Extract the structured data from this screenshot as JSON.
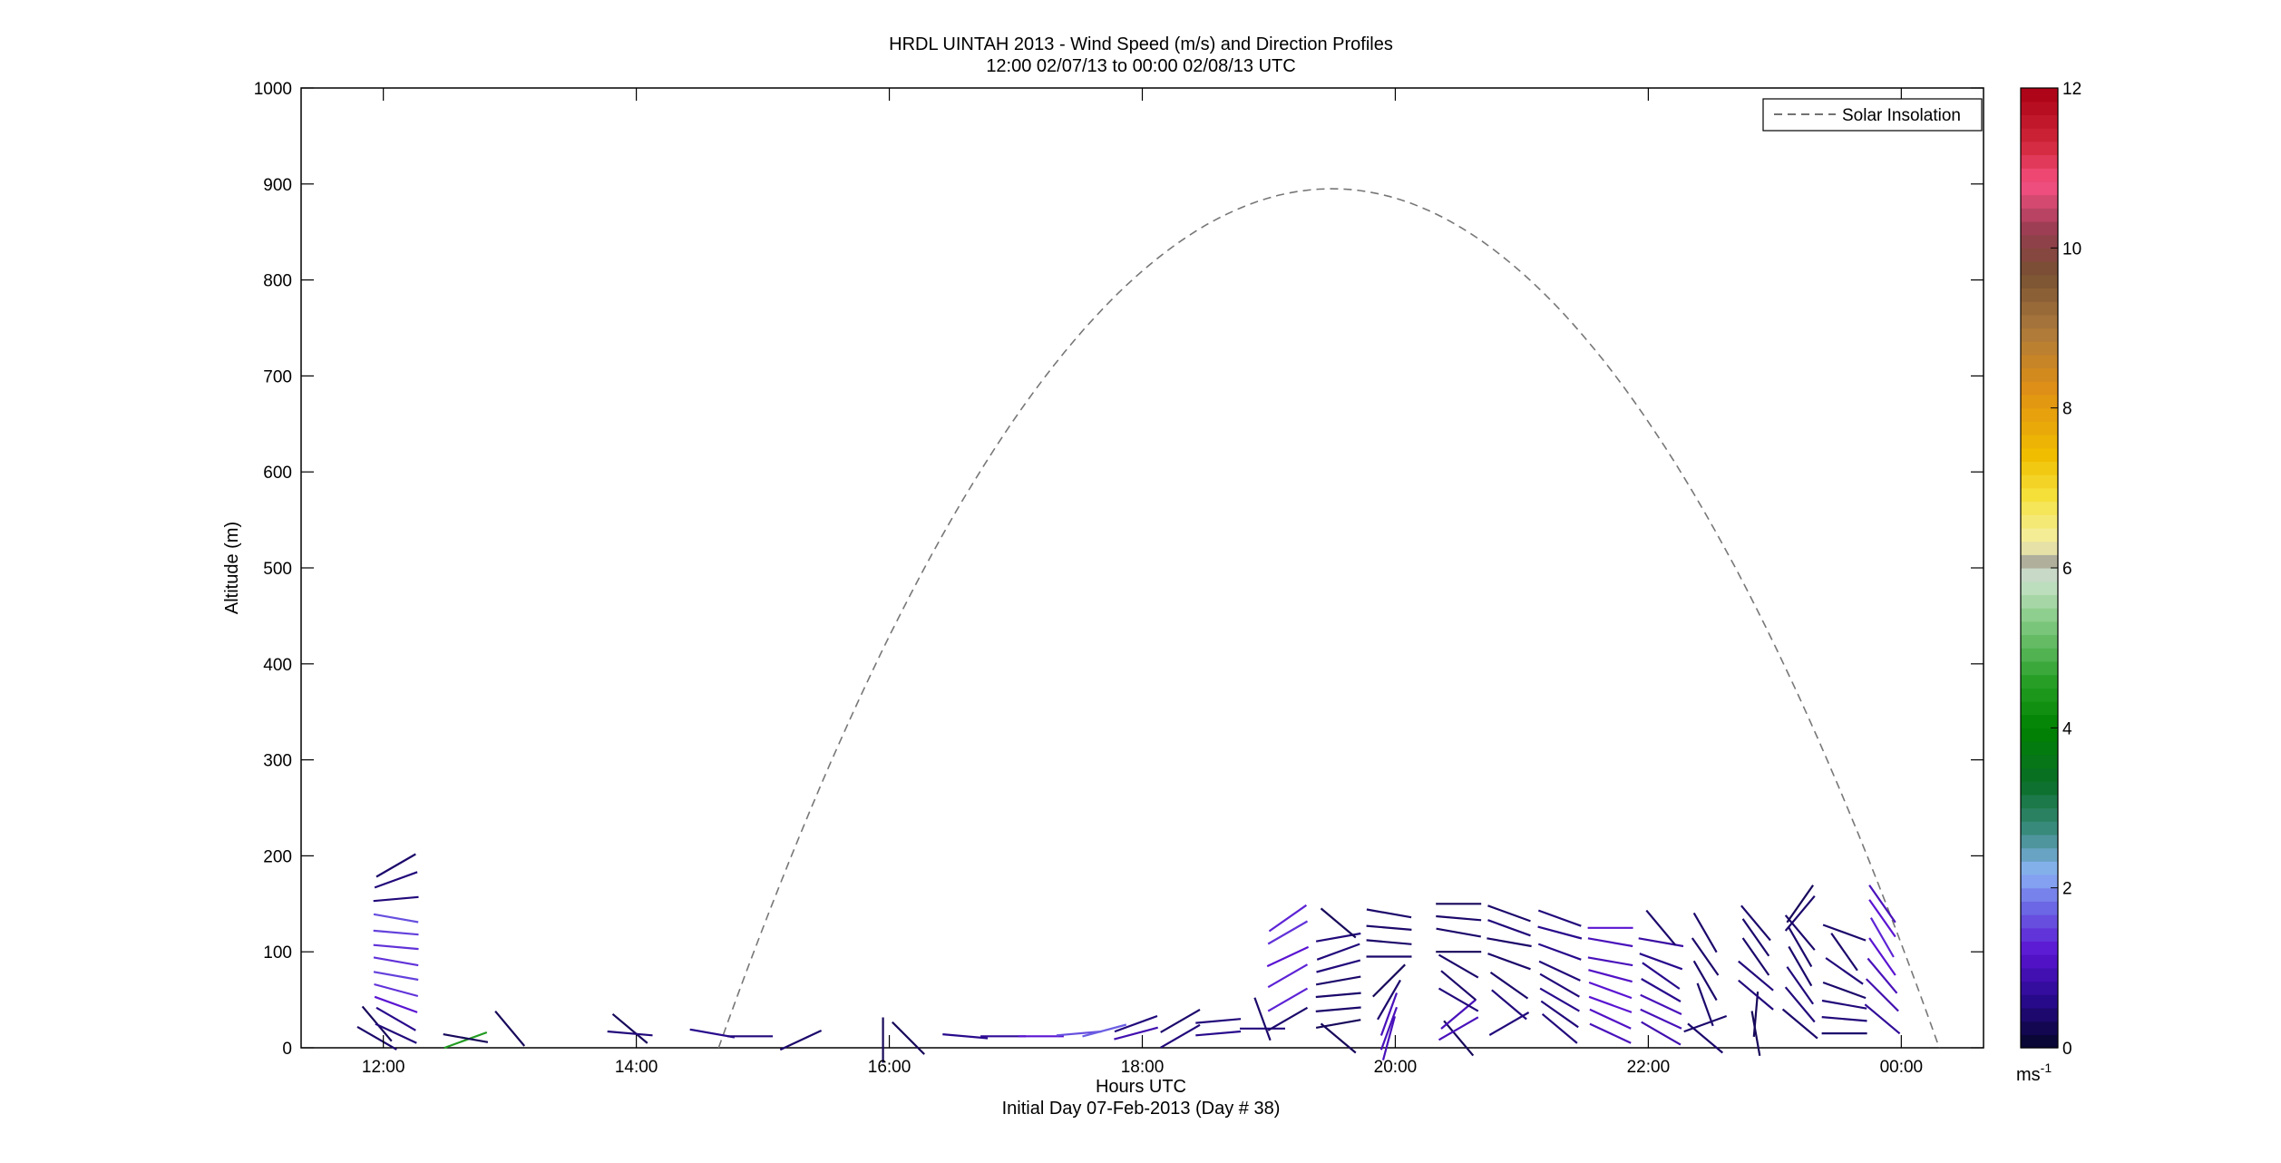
{
  "chart_data": {
    "type": "scatter",
    "title": "HRDL UINTAH 2013 - Wind Speed (m/s) and Direction Profiles",
    "subtitle": "12:00 02/07/13 to 00:00 02/08/13  UTC",
    "xlabel": "Hours UTC",
    "xlabel2": "Initial Day 07-Feb-2013 (Day # 38)",
    "ylabel": "Altitude (m)",
    "x_tick_labels": [
      "12:00",
      "14:00",
      "16:00",
      "18:00",
      "20:00",
      "22:00",
      "00:00"
    ],
    "x_ticks_hours": [
      12,
      14,
      16,
      18,
      20,
      22,
      24
    ],
    "xlim_hours": [
      11.35,
      24.65
    ],
    "ylim": [
      0,
      1000
    ],
    "y_ticks": [
      0,
      100,
      200,
      300,
      400,
      500,
      600,
      700,
      800,
      900,
      1000
    ],
    "grid": false,
    "legend": {
      "position": "top-right",
      "entries": [
        "Solar Insolation"
      ]
    },
    "colorbar": {
      "unit": "ms",
      "unit_exp": "-1",
      "min": 0,
      "max": 12,
      "tick_labels": [
        "0",
        "2",
        "4",
        "6",
        "8",
        "10",
        "12"
      ],
      "ticks": [
        0,
        2,
        4,
        6,
        8,
        10,
        12
      ]
    },
    "solar_insolation": {
      "start_hour": 14.65,
      "peak_hour": 19.5,
      "end_hour": 24.3,
      "peak_altitude": 895
    },
    "wind_profiles": [
      {
        "time": 11.95,
        "levels": [
          {
            "alt": 10,
            "speed": 0.4,
            "dir": 120
          },
          {
            "alt": 25,
            "speed": 0.3,
            "dir": 140
          }
        ]
      },
      {
        "time": 12.1,
        "levels": [
          {
            "alt": 15,
            "speed": 0.5,
            "dir": 115
          },
          {
            "alt": 30,
            "speed": 0.6,
            "dir": 120
          },
          {
            "alt": 45,
            "speed": 1.2,
            "dir": 110
          },
          {
            "alt": 60,
            "speed": 1.4,
            "dir": 105
          },
          {
            "alt": 75,
            "speed": 1.5,
            "dir": 100
          },
          {
            "alt": 90,
            "speed": 1.4,
            "dir": 100
          },
          {
            "alt": 105,
            "speed": 1.4,
            "dir": 95
          },
          {
            "alt": 120,
            "speed": 1.5,
            "dir": 95
          },
          {
            "alt": 135,
            "speed": 1.6,
            "dir": 100
          },
          {
            "alt": 155,
            "speed": 0.5,
            "dir": 85
          },
          {
            "alt": 175,
            "speed": 0.5,
            "dir": 70
          },
          {
            "alt": 190,
            "speed": 0.4,
            "dir": 60
          }
        ]
      },
      {
        "time": 12.65,
        "levels": [
          {
            "alt": 8,
            "speed": 4.5,
            "dir": 70
          },
          {
            "alt": 10,
            "speed": 0.3,
            "dir": 100
          }
        ]
      },
      {
        "time": 13.0,
        "levels": [
          {
            "alt": 20,
            "speed": 0.3,
            "dir": 140
          }
        ]
      },
      {
        "time": 13.95,
        "levels": [
          {
            "alt": 20,
            "speed": 0.3,
            "dir": 130
          },
          {
            "alt": 15,
            "speed": 0.5,
            "dir": 95
          }
        ]
      },
      {
        "time": 14.6,
        "levels": [
          {
            "alt": 15,
            "speed": 0.6,
            "dir": 100
          }
        ]
      },
      {
        "time": 14.9,
        "levels": [
          {
            "alt": 12,
            "speed": 0.5,
            "dir": 90
          }
        ]
      },
      {
        "time": 15.3,
        "levels": [
          {
            "alt": 8,
            "speed": 0.4,
            "dir": 65
          }
        ]
      },
      {
        "time": 15.95,
        "levels": [
          {
            "alt": 8,
            "speed": 0.3,
            "dir": 0
          }
        ]
      },
      {
        "time": 16.15,
        "levels": [
          {
            "alt": 10,
            "speed": 0.3,
            "dir": 135
          }
        ]
      },
      {
        "time": 16.6,
        "levels": [
          {
            "alt": 12,
            "speed": 0.6,
            "dir": 95
          }
        ]
      },
      {
        "time": 16.9,
        "levels": [
          {
            "alt": 12,
            "speed": 0.7,
            "dir": 90
          }
        ]
      },
      {
        "time": 17.2,
        "levels": [
          {
            "alt": 12,
            "speed": 1.2,
            "dir": 90
          }
        ]
      },
      {
        "time": 17.5,
        "levels": [
          {
            "alt": 15,
            "speed": 1.6,
            "dir": 85
          }
        ]
      },
      {
        "time": 17.7,
        "levels": [
          {
            "alt": 18,
            "speed": 1.7,
            "dir": 75
          }
        ]
      },
      {
        "time": 17.95,
        "levels": [
          {
            "alt": 15,
            "speed": 0.9,
            "dir": 75
          },
          {
            "alt": 25,
            "speed": 0.5,
            "dir": 70
          }
        ]
      },
      {
        "time": 18.3,
        "levels": [
          {
            "alt": 12,
            "speed": 0.5,
            "dir": 60
          },
          {
            "alt": 28,
            "speed": 0.4,
            "dir": 60
          }
        ]
      },
      {
        "time": 18.6,
        "levels": [
          {
            "alt": 15,
            "speed": 0.6,
            "dir": 85
          },
          {
            "alt": 28,
            "speed": 0.5,
            "dir": 85
          }
        ]
      },
      {
        "time": 18.95,
        "levels": [
          {
            "alt": 20,
            "speed": 0.5,
            "dir": 90
          },
          {
            "alt": 30,
            "speed": 0.4,
            "dir": 160
          }
        ]
      },
      {
        "time": 19.15,
        "levels": [
          {
            "alt": 30,
            "speed": 0.4,
            "dir": 60
          },
          {
            "alt": 50,
            "speed": 1.3,
            "dir": 60
          },
          {
            "alt": 75,
            "speed": 1.3,
            "dir": 60
          },
          {
            "alt": 95,
            "speed": 1.2,
            "dir": 65
          },
          {
            "alt": 120,
            "speed": 1.4,
            "dir": 60
          },
          {
            "alt": 135,
            "speed": 1.3,
            "dir": 55
          }
        ]
      },
      {
        "time": 19.55,
        "levels": [
          {
            "alt": 10,
            "speed": 0.3,
            "dir": 130
          },
          {
            "alt": 25,
            "speed": 0.3,
            "dir": 80
          },
          {
            "alt": 40,
            "speed": 0.4,
            "dir": 85
          },
          {
            "alt": 55,
            "speed": 0.4,
            "dir": 85
          },
          {
            "alt": 70,
            "speed": 0.4,
            "dir": 80
          },
          {
            "alt": 85,
            "speed": 0.5,
            "dir": 75
          },
          {
            "alt": 100,
            "speed": 0.5,
            "dir": 70
          },
          {
            "alt": 115,
            "speed": 0.5,
            "dir": 80
          },
          {
            "alt": 130,
            "speed": 0.3,
            "dir": 130
          }
        ]
      },
      {
        "time": 19.95,
        "levels": [
          {
            "alt": 10,
            "speed": 1.0,
            "dir": 15
          },
          {
            "alt": 20,
            "speed": 1.0,
            "dir": 20
          },
          {
            "alt": 35,
            "speed": 1.0,
            "dir": 20
          },
          {
            "alt": 50,
            "speed": 0.4,
            "dir": 30
          },
          {
            "alt": 70,
            "speed": 0.3,
            "dir": 45
          },
          {
            "alt": 95,
            "speed": 0.4,
            "dir": 90
          },
          {
            "alt": 110,
            "speed": 0.4,
            "dir": 95
          },
          {
            "alt": 125,
            "speed": 0.4,
            "dir": 95
          },
          {
            "alt": 140,
            "speed": 0.4,
            "dir": 100
          }
        ]
      },
      {
        "time": 20.5,
        "levels": [
          {
            "alt": 10,
            "speed": 0.3,
            "dir": 140
          },
          {
            "alt": 20,
            "speed": 1.0,
            "dir": 60
          },
          {
            "alt": 35,
            "speed": 1.0,
            "dir": 50
          },
          {
            "alt": 50,
            "speed": 0.5,
            "dir": 120
          },
          {
            "alt": 65,
            "speed": 0.4,
            "dir": 130
          },
          {
            "alt": 85,
            "speed": 0.4,
            "dir": 120
          },
          {
            "alt": 100,
            "speed": 0.3,
            "dir": 90
          },
          {
            "alt": 120,
            "speed": 0.4,
            "dir": 100
          },
          {
            "alt": 135,
            "speed": 0.4,
            "dir": 95
          },
          {
            "alt": 150,
            "speed": 0.3,
            "dir": 90
          }
        ]
      },
      {
        "time": 20.9,
        "levels": [
          {
            "alt": 25,
            "speed": 0.5,
            "dir": 60
          },
          {
            "alt": 45,
            "speed": 0.5,
            "dir": 130
          },
          {
            "alt": 65,
            "speed": 0.4,
            "dir": 125
          },
          {
            "alt": 90,
            "speed": 0.4,
            "dir": 110
          },
          {
            "alt": 110,
            "speed": 0.4,
            "dir": 100
          },
          {
            "alt": 125,
            "speed": 0.5,
            "dir": 110
          },
          {
            "alt": 140,
            "speed": 0.4,
            "dir": 110
          }
        ]
      },
      {
        "time": 21.3,
        "levels": [
          {
            "alt": 20,
            "speed": 0.5,
            "dir": 130
          },
          {
            "alt": 35,
            "speed": 0.5,
            "dir": 125
          },
          {
            "alt": 50,
            "speed": 0.6,
            "dir": 120
          },
          {
            "alt": 65,
            "speed": 0.5,
            "dir": 120
          },
          {
            "alt": 80,
            "speed": 0.5,
            "dir": 115
          },
          {
            "alt": 100,
            "speed": 0.6,
            "dir": 110
          },
          {
            "alt": 120,
            "speed": 0.6,
            "dir": 105
          },
          {
            "alt": 135,
            "speed": 0.5,
            "dir": 110
          }
        ]
      },
      {
        "time": 21.7,
        "levels": [
          {
            "alt": 15,
            "speed": 1.0,
            "dir": 115
          },
          {
            "alt": 30,
            "speed": 1.1,
            "dir": 115
          },
          {
            "alt": 45,
            "speed": 1.2,
            "dir": 110
          },
          {
            "alt": 60,
            "speed": 1.2,
            "dir": 110
          },
          {
            "alt": 75,
            "speed": 1.1,
            "dir": 105
          },
          {
            "alt": 90,
            "speed": 1.0,
            "dir": 100
          },
          {
            "alt": 110,
            "speed": 1.0,
            "dir": 100
          },
          {
            "alt": 125,
            "speed": 1.2,
            "dir": 90
          }
        ]
      },
      {
        "time": 22.1,
        "levels": [
          {
            "alt": 15,
            "speed": 0.9,
            "dir": 120
          },
          {
            "alt": 30,
            "speed": 1.0,
            "dir": 115
          },
          {
            "alt": 45,
            "speed": 1.0,
            "dir": 115
          },
          {
            "alt": 60,
            "speed": 0.6,
            "dir": 120
          },
          {
            "alt": 75,
            "speed": 0.6,
            "dir": 125
          },
          {
            "alt": 90,
            "speed": 0.6,
            "dir": 110
          },
          {
            "alt": 110,
            "speed": 0.8,
            "dir": 100
          },
          {
            "alt": 125,
            "speed": 0.4,
            "dir": 140
          }
        ]
      },
      {
        "time": 22.45,
        "levels": [
          {
            "alt": 10,
            "speed": 0.4,
            "dir": 130
          },
          {
            "alt": 25,
            "speed": 0.4,
            "dir": 70
          },
          {
            "alt": 45,
            "speed": 0.4,
            "dir": 160
          },
          {
            "alt": 70,
            "speed": 0.4,
            "dir": 150
          },
          {
            "alt": 95,
            "speed": 0.4,
            "dir": 145
          },
          {
            "alt": 120,
            "speed": 0.4,
            "dir": 150
          }
        ]
      },
      {
        "time": 22.85,
        "levels": [
          {
            "alt": 15,
            "speed": 0.3,
            "dir": 170
          },
          {
            "alt": 35,
            "speed": 0.3,
            "dir": 5
          },
          {
            "alt": 55,
            "speed": 0.5,
            "dir": 130
          },
          {
            "alt": 75,
            "speed": 0.5,
            "dir": 130
          },
          {
            "alt": 95,
            "speed": 0.4,
            "dir": 145
          },
          {
            "alt": 115,
            "speed": 0.4,
            "dir": 145
          },
          {
            "alt": 130,
            "speed": 0.4,
            "dir": 140
          }
        ]
      },
      {
        "time": 23.2,
        "levels": [
          {
            "alt": 25,
            "speed": 0.4,
            "dir": 130
          },
          {
            "alt": 45,
            "speed": 0.5,
            "dir": 140
          },
          {
            "alt": 65,
            "speed": 0.5,
            "dir": 145
          },
          {
            "alt": 85,
            "speed": 0.4,
            "dir": 150
          },
          {
            "alt": 105,
            "speed": 0.4,
            "dir": 150
          },
          {
            "alt": 120,
            "speed": 0.4,
            "dir": 140
          },
          {
            "alt": 140,
            "speed": 0.4,
            "dir": 40
          },
          {
            "alt": 150,
            "speed": 0.3,
            "dir": 35
          }
        ]
      },
      {
        "time": 23.55,
        "levels": [
          {
            "alt": 15,
            "speed": 0.4,
            "dir": 90
          },
          {
            "alt": 30,
            "speed": 0.5,
            "dir": 95
          },
          {
            "alt": 45,
            "speed": 0.5,
            "dir": 100
          },
          {
            "alt": 60,
            "speed": 0.4,
            "dir": 110
          },
          {
            "alt": 80,
            "speed": 0.5,
            "dir": 125
          },
          {
            "alt": 100,
            "speed": 0.4,
            "dir": 145
          },
          {
            "alt": 120,
            "speed": 0.4,
            "dir": 110
          }
        ]
      },
      {
        "time": 23.85,
        "levels": [
          {
            "alt": 30,
            "speed": 0.7,
            "dir": 130
          },
          {
            "alt": 55,
            "speed": 0.9,
            "dir": 135
          },
          {
            "alt": 75,
            "speed": 1.0,
            "dir": 140
          },
          {
            "alt": 95,
            "speed": 1.2,
            "dir": 145
          },
          {
            "alt": 115,
            "speed": 1.3,
            "dir": 150
          },
          {
            "alt": 135,
            "speed": 1.2,
            "dir": 145
          },
          {
            "alt": 150,
            "speed": 1.0,
            "dir": 145
          }
        ]
      }
    ]
  }
}
